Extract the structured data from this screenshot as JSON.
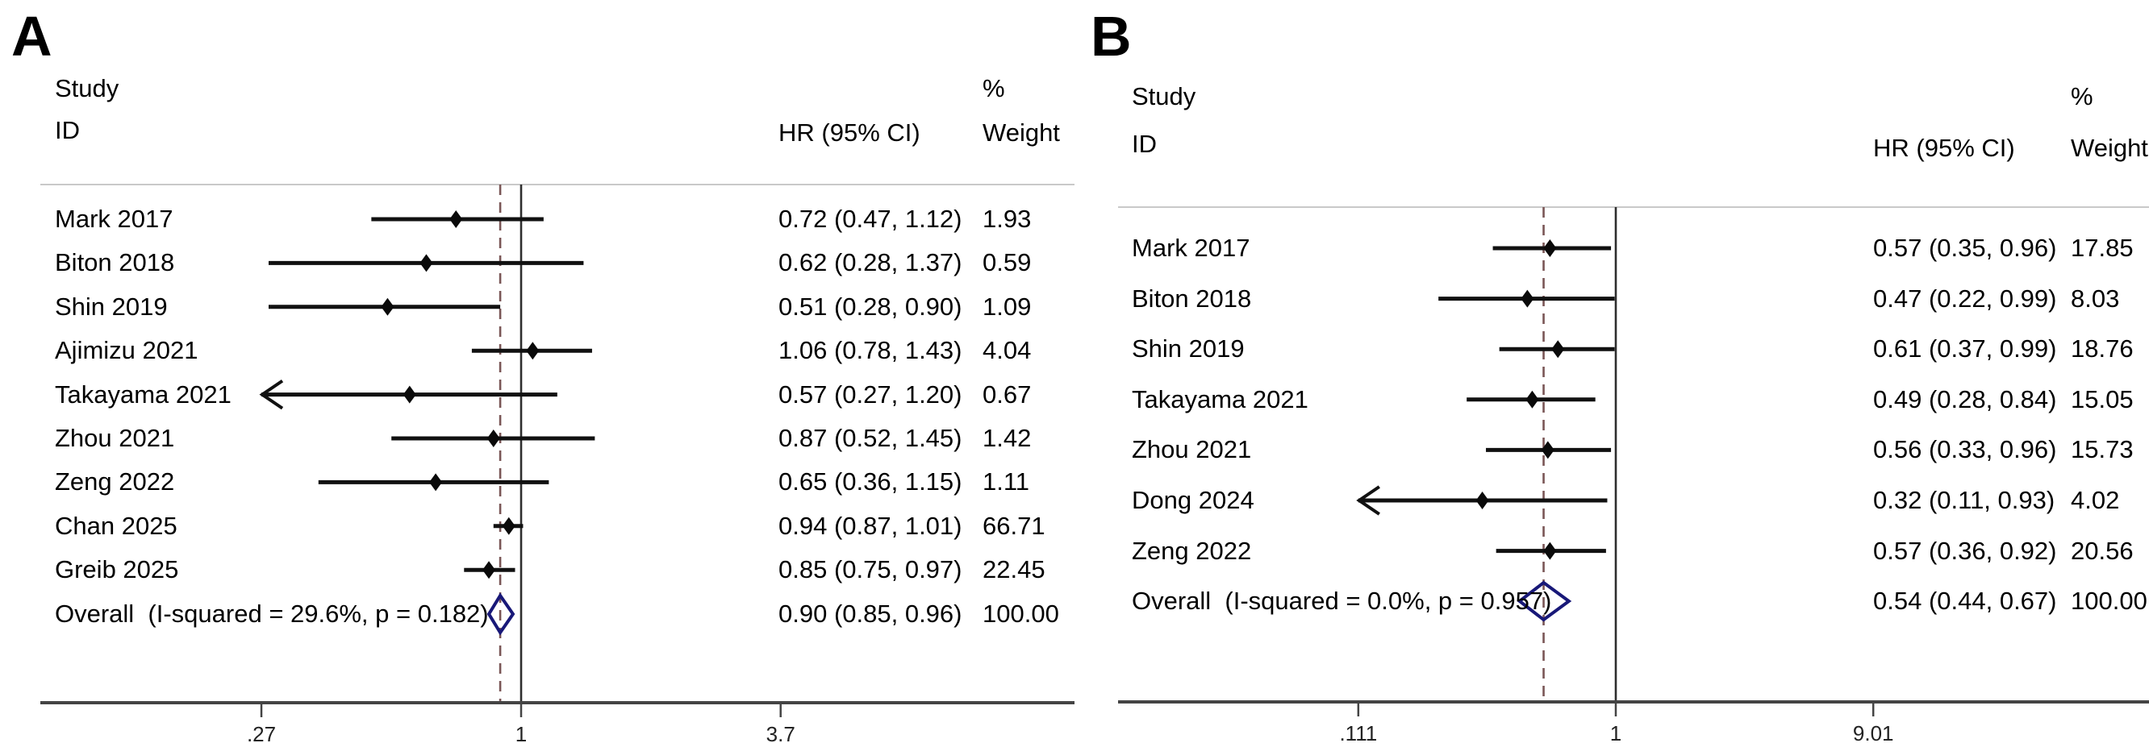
{
  "colors": {
    "text": "#000000",
    "ci_line": "#111111",
    "point_marker": "#0a0a0a",
    "diamond_outline": "#181878",
    "dashed_overall_line": "#7a5656",
    "null_line": "#2e2e2e",
    "axis": "#444444",
    "separator": "#c9c9c9"
  },
  "chart_data": [
    {
      "type": "forest",
      "panel_label": "A",
      "effect_measure": "HR",
      "header": {
        "study": "Study",
        "id": "ID",
        "percent": "%",
        "hr_ci": "HR (95% CI)",
        "weight": "Weight"
      },
      "x_axis": {
        "scale": "log",
        "tick_labels": [
          ".27",
          "1",
          "3.7"
        ],
        "tick_values": [
          0.27,
          1,
          3.7
        ],
        "null_line": 1,
        "dashed_line_at": 0.9,
        "clip_min": 0.27
      },
      "studies": [
        {
          "id": "Mark 2017",
          "hr": 0.72,
          "ci_low": 0.47,
          "ci_high": 1.12,
          "hr_ci": "0.72 (0.47, 1.12)",
          "weight": "1.93",
          "arrow_low": false
        },
        {
          "id": "Biton 2018",
          "hr": 0.62,
          "ci_low": 0.28,
          "ci_high": 1.37,
          "hr_ci": "0.62 (0.28, 1.37)",
          "weight": "0.59",
          "arrow_low": false
        },
        {
          "id": "Shin 2019",
          "hr": 0.51,
          "ci_low": 0.28,
          "ci_high": 0.9,
          "hr_ci": "0.51 (0.28, 0.90)",
          "weight": "1.09",
          "arrow_low": false
        },
        {
          "id": "Ajimizu 2021",
          "hr": 1.06,
          "ci_low": 0.78,
          "ci_high": 1.43,
          "hr_ci": "1.06 (0.78, 1.43)",
          "weight": "4.04",
          "arrow_low": false
        },
        {
          "id": "Takayama 2021",
          "hr": 0.57,
          "ci_low": 0.27,
          "ci_high": 1.2,
          "hr_ci": "0.57 (0.27, 1.20)",
          "weight": "0.67",
          "arrow_low": true
        },
        {
          "id": "Zhou 2021",
          "hr": 0.87,
          "ci_low": 0.52,
          "ci_high": 1.45,
          "hr_ci": "0.87 (0.52, 1.45)",
          "weight": "1.42",
          "arrow_low": false
        },
        {
          "id": "Zeng 2022",
          "hr": 0.65,
          "ci_low": 0.36,
          "ci_high": 1.15,
          "hr_ci": "0.65 (0.36, 1.15)",
          "weight": "1.11",
          "arrow_low": false
        },
        {
          "id": "Chan 2025",
          "hr": 0.94,
          "ci_low": 0.87,
          "ci_high": 1.01,
          "hr_ci": "0.94 (0.87, 1.01)",
          "weight": "66.71",
          "arrow_low": false
        },
        {
          "id": "Greib 2025",
          "hr": 0.85,
          "ci_low": 0.75,
          "ci_high": 0.97,
          "hr_ci": "0.85 (0.75, 0.97)",
          "weight": "22.45",
          "arrow_low": false
        }
      ],
      "overall": {
        "label": "Overall  (I-squared = 29.6%, p = 0.182)",
        "hr": 0.9,
        "ci_low": 0.85,
        "ci_high": 0.96,
        "hr_ci": "0.90 (0.85, 0.96)",
        "weight": "100.00"
      }
    },
    {
      "type": "forest",
      "panel_label": "B",
      "effect_measure": "HR",
      "header": {
        "study": "Study",
        "id": "ID",
        "percent": "%",
        "hr_ci": "HR (95% CI)",
        "weight": "Weight"
      },
      "x_axis": {
        "scale": "log",
        "tick_labels": [
          ".111",
          "1",
          "9.01"
        ],
        "tick_values": [
          0.111,
          1,
          9.01
        ],
        "null_line": 1,
        "dashed_line_at": 0.54,
        "clip_min": 0.111
      },
      "studies": [
        {
          "id": "Mark 2017",
          "hr": 0.57,
          "ci_low": 0.35,
          "ci_high": 0.96,
          "hr_ci": "0.57 (0.35, 0.96)",
          "weight": "17.85",
          "arrow_low": false
        },
        {
          "id": "Biton 2018",
          "hr": 0.47,
          "ci_low": 0.22,
          "ci_high": 0.99,
          "hr_ci": "0.47 (0.22, 0.99)",
          "weight": "8.03",
          "arrow_low": false
        },
        {
          "id": "Shin 2019",
          "hr": 0.61,
          "ci_low": 0.37,
          "ci_high": 0.99,
          "hr_ci": "0.61 (0.37, 0.99)",
          "weight": "18.76",
          "arrow_low": false
        },
        {
          "id": "Takayama 2021",
          "hr": 0.49,
          "ci_low": 0.28,
          "ci_high": 0.84,
          "hr_ci": "0.49 (0.28, 0.84)",
          "weight": "15.05",
          "arrow_low": false
        },
        {
          "id": "Zhou 2021",
          "hr": 0.56,
          "ci_low": 0.33,
          "ci_high": 0.96,
          "hr_ci": "0.56 (0.33, 0.96)",
          "weight": "15.73",
          "arrow_low": false
        },
        {
          "id": "Dong 2024",
          "hr": 0.32,
          "ci_low": 0.11,
          "ci_high": 0.93,
          "hr_ci": "0.32 (0.11, 0.93)",
          "weight": "4.02",
          "arrow_low": true
        },
        {
          "id": "Zeng 2022",
          "hr": 0.57,
          "ci_low": 0.36,
          "ci_high": 0.92,
          "hr_ci": "0.57 (0.36, 0.92)",
          "weight": "20.56",
          "arrow_low": false
        }
      ],
      "overall": {
        "label": "Overall  (I-squared = 0.0%, p = 0.957)",
        "hr": 0.54,
        "ci_low": 0.44,
        "ci_high": 0.67,
        "hr_ci": "0.54 (0.44, 0.67)",
        "weight": "100.00"
      }
    }
  ]
}
